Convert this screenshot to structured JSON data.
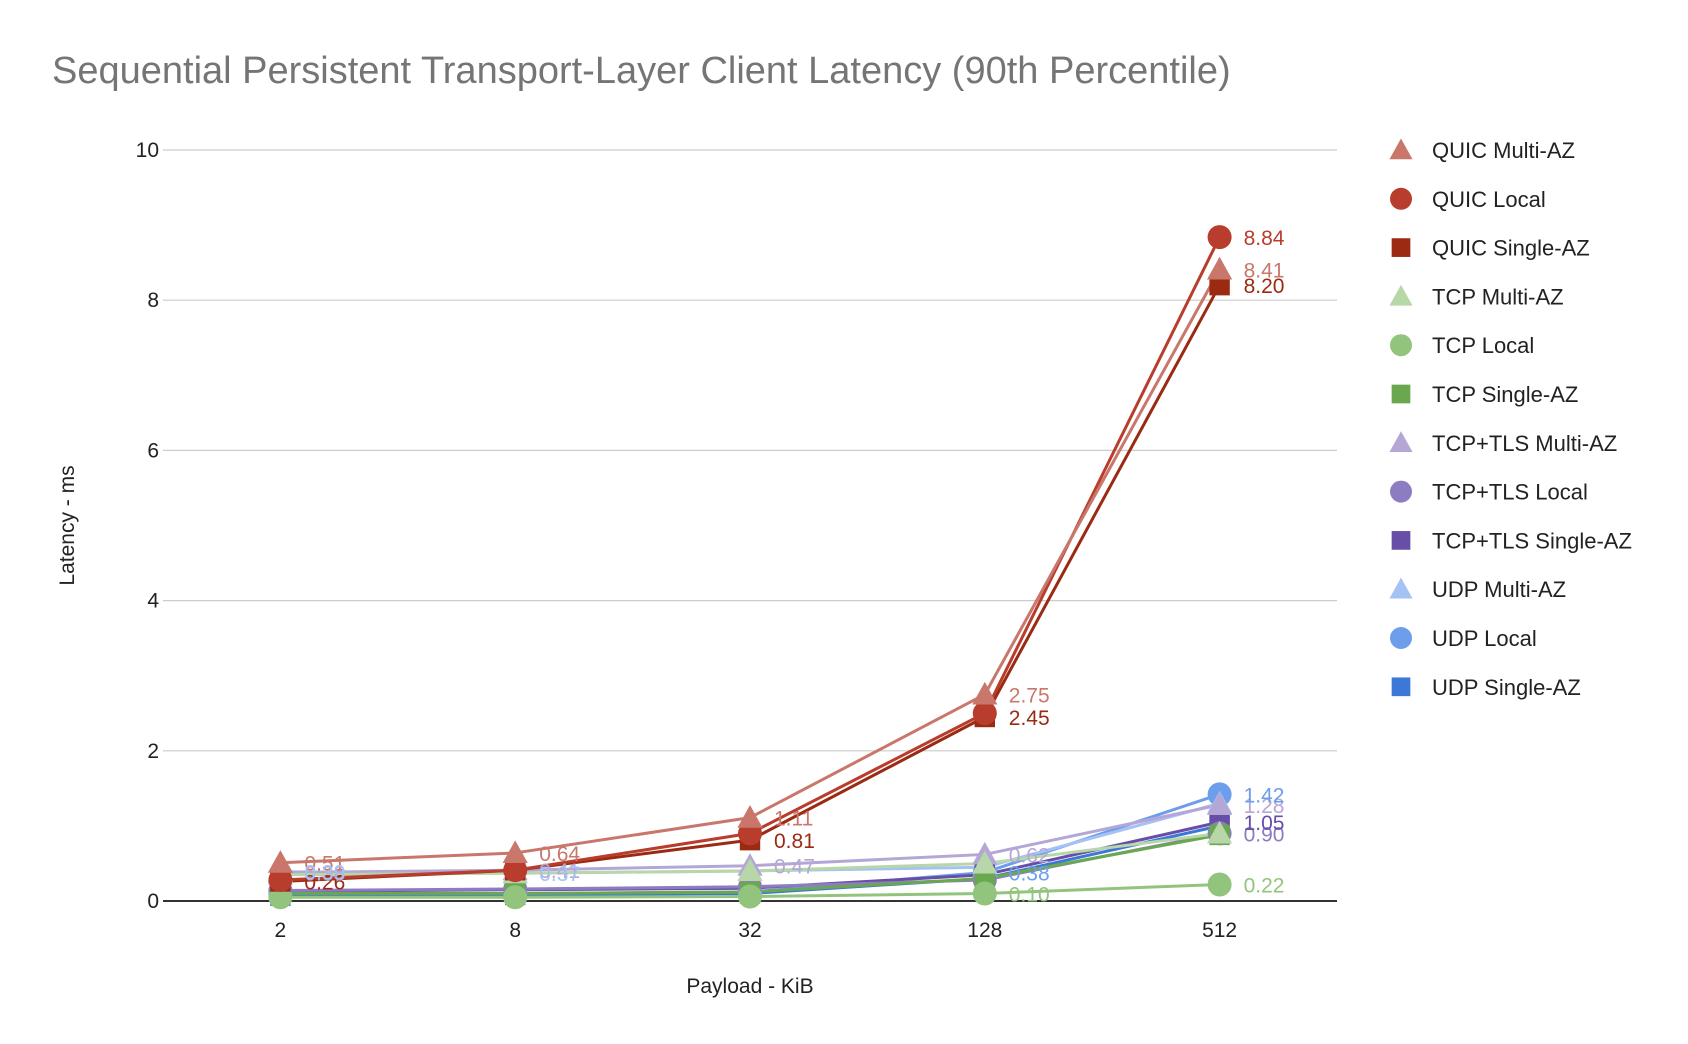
{
  "chart_data": {
    "type": "line",
    "title": "Sequential Persistent Transport-Layer Client Latency (90th Percentile)",
    "xlabel": "Payload - KiB",
    "ylabel": "Latency - ms",
    "categories": [
      "2",
      "8",
      "32",
      "128",
      "512"
    ],
    "ylim": [
      0,
      10
    ],
    "yticks": [
      0,
      2,
      4,
      6,
      8,
      10
    ],
    "grid": true,
    "legend_position": "right",
    "series": [
      {
        "name": "QUIC Multi-AZ",
        "marker": "triangle",
        "color": "#c9776b",
        "values": [
          0.51,
          0.64,
          1.11,
          2.75,
          8.41
        ],
        "labels": [
          "0.51",
          "0.64",
          "1.11",
          "2.75",
          "8.41"
        ]
      },
      {
        "name": "QUIC Local",
        "marker": "circle",
        "color": "#b83d2c",
        "values": [
          0.28,
          0.41,
          0.9,
          2.5,
          8.84
        ],
        "labels": [
          "",
          "",
          "",
          "",
          "8.84"
        ]
      },
      {
        "name": "QUIC Single-AZ",
        "marker": "square",
        "color": "#9b2a12",
        "values": [
          0.26,
          0.41,
          0.81,
          2.45,
          8.2
        ],
        "labels": [
          "0.26",
          "",
          "0.81",
          "2.45",
          "8.20"
        ]
      },
      {
        "name": "TCP Multi-AZ",
        "marker": "triangle",
        "color": "#b7d7a8",
        "values": [
          0.35,
          0.37,
          0.4,
          0.5,
          0.9
        ],
        "labels": [
          "",
          "",
          "",
          "",
          ""
        ]
      },
      {
        "name": "TCP Local",
        "marker": "circle",
        "color": "#93c47d",
        "values": [
          0.05,
          0.05,
          0.06,
          0.1,
          0.22
        ],
        "labels": [
          "",
          "",
          "",
          "0.10",
          "0.22"
        ]
      },
      {
        "name": "TCP Single-AZ",
        "marker": "square",
        "color": "#6aa84f",
        "values": [
          0.1,
          0.1,
          0.12,
          0.3,
          0.88
        ],
        "labels": [
          "",
          "",
          "",
          "",
          ""
        ]
      },
      {
        "name": "TCP+TLS Multi-AZ",
        "marker": "triangle",
        "color": "#b4a7d6",
        "values": [
          0.38,
          0.41,
          0.47,
          0.62,
          1.28
        ],
        "labels": [
          "0.38",
          "0.41",
          "0.47",
          "0.62",
          "1.28"
        ]
      },
      {
        "name": "TCP+TLS Local",
        "marker": "circle",
        "color": "#8e7cc3",
        "values": [
          0.14,
          0.16,
          0.19,
          0.28,
          0.9
        ],
        "labels": [
          "",
          "",
          "",
          "",
          "0.90"
        ]
      },
      {
        "name": "TCP+TLS Single-AZ",
        "marker": "square",
        "color": "#674ea7",
        "values": [
          0.13,
          0.15,
          0.17,
          0.35,
          1.05
        ],
        "labels": [
          "",
          "",
          "",
          "",
          "1.05"
        ]
      },
      {
        "name": "UDP Multi-AZ",
        "marker": "triangle",
        "color": "#a4c2f4",
        "values": [
          0.39,
          0.37,
          0.4,
          0.45,
          1.3
        ],
        "labels": [
          "0.39",
          "0.37",
          "",
          "",
          ""
        ]
      },
      {
        "name": "UDP Local",
        "marker": "circle",
        "color": "#6d9eeb",
        "values": [
          0.1,
          0.1,
          0.12,
          0.38,
          1.42
        ],
        "labels": [
          "",
          "",
          "",
          "0.38",
          "1.42"
        ]
      },
      {
        "name": "UDP Single-AZ",
        "marker": "square",
        "color": "#3c78d8",
        "values": [
          0.07,
          0.08,
          0.1,
          0.3,
          1.0
        ],
        "labels": [
          "",
          "",
          "",
          "",
          ""
        ]
      }
    ]
  }
}
